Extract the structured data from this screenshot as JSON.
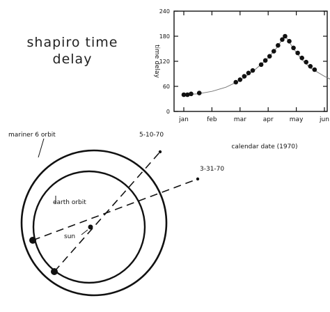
{
  "title": {
    "line1": "shapiro time",
    "line2": "delay"
  },
  "chart_data": {
    "type": "scatter",
    "ylabel": "time delay",
    "xlabel": "calendar date (1970)",
    "x_ticks": [
      "jan",
      "feb",
      "mar",
      "apr",
      "may",
      "jun"
    ],
    "y_ticks": [
      0,
      60,
      120,
      180,
      240
    ],
    "ylim": [
      0,
      240
    ],
    "xlim": [
      0,
      5.9
    ],
    "x_unit": "months from jan (tick positions)",
    "series": [
      {
        "points": [
          {
            "x": 0.0,
            "y": 40
          },
          {
            "x": 0.13,
            "y": 40
          },
          {
            "x": 0.26,
            "y": 42
          },
          {
            "x": 0.55,
            "y": 44
          },
          {
            "x": 1.85,
            "y": 70
          },
          {
            "x": 2.0,
            "y": 76
          },
          {
            "x": 2.15,
            "y": 84
          },
          {
            "x": 2.3,
            "y": 92
          },
          {
            "x": 2.45,
            "y": 98
          },
          {
            "x": 2.75,
            "y": 112
          },
          {
            "x": 2.9,
            "y": 122
          },
          {
            "x": 3.05,
            "y": 132
          },
          {
            "x": 3.2,
            "y": 144
          },
          {
            "x": 3.35,
            "y": 158
          },
          {
            "x": 3.5,
            "y": 172
          },
          {
            "x": 3.6,
            "y": 180
          },
          {
            "x": 3.75,
            "y": 168
          },
          {
            "x": 3.9,
            "y": 152
          },
          {
            "x": 4.05,
            "y": 140
          },
          {
            "x": 4.2,
            "y": 128
          },
          {
            "x": 4.35,
            "y": 118
          },
          {
            "x": 4.5,
            "y": 108
          },
          {
            "x": 4.65,
            "y": 100
          }
        ]
      }
    ],
    "model_curve": [
      [
        0,
        40
      ],
      [
        0.5,
        42
      ],
      [
        1,
        48
      ],
      [
        1.5,
        58
      ],
      [
        2,
        74
      ],
      [
        2.5,
        98
      ],
      [
        3,
        128
      ],
      [
        3.3,
        152
      ],
      [
        3.6,
        182
      ],
      [
        3.9,
        150
      ],
      [
        4.2,
        124
      ],
      [
        4.5,
        104
      ],
      [
        5,
        84
      ],
      [
        5.5,
        68
      ],
      [
        5.9,
        58
      ]
    ]
  },
  "diagram": {
    "mariner_orbit_label": "mariner 6 orbit",
    "earth_orbit_label": "earth orbit",
    "sun_label": "sun",
    "date_label_1": "5-10-70",
    "date_label_2": "3-31-70"
  }
}
